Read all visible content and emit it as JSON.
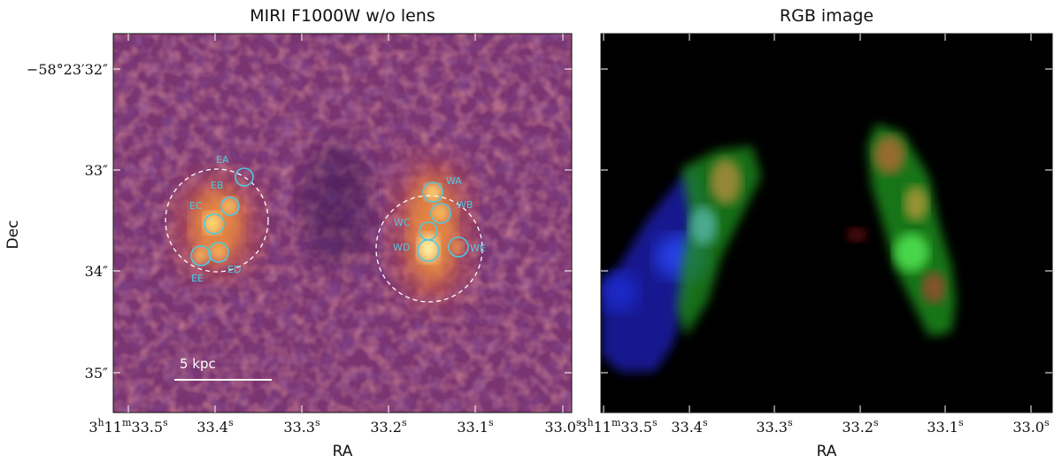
{
  "panels": {
    "left": {
      "title": "MIRI F1000W w/o lens",
      "scale_bar_label": "5 kpc",
      "clumps": [
        {
          "id": "EA",
          "radius": "small"
        },
        {
          "id": "EB",
          "radius": "small"
        },
        {
          "id": "EC",
          "radius": "small"
        },
        {
          "id": "ED",
          "radius": "small"
        },
        {
          "id": "EE",
          "radius": "small"
        },
        {
          "id": "WA",
          "radius": "small"
        },
        {
          "id": "WB",
          "radius": "small"
        },
        {
          "id": "WC",
          "radius": "small"
        },
        {
          "id": "WD",
          "radius": "small"
        },
        {
          "id": "WE",
          "radius": "small"
        }
      ],
      "apertures": [
        "east-aperture",
        "west-aperture"
      ]
    },
    "right": {
      "title": "RGB image"
    }
  },
  "axes": {
    "xlabel": "RA",
    "ylabel": "Dec",
    "xticks": [
      {
        "label_main": "3",
        "sup1": "h",
        "mid1": "11",
        "sup2": "m",
        "mid2": "33.5",
        "sup3": "s"
      },
      {
        "label_main": "33.4",
        "sup3": "s"
      },
      {
        "label_main": "33.3",
        "sup3": "s"
      },
      {
        "label_main": "33.2",
        "sup3": "s"
      },
      {
        "label_main": "33.1",
        "sup3": "s"
      },
      {
        "label_main": "33.0",
        "sup3": "s"
      }
    ],
    "yticks": [
      {
        "label": "−58°23′32″"
      },
      {
        "label": "33″"
      },
      {
        "label": "34″"
      },
      {
        "label": "35″"
      }
    ]
  },
  "colors": {
    "cyan": "#4fc8e0",
    "background_left": "#7a3470",
    "background_right": "#000000"
  }
}
